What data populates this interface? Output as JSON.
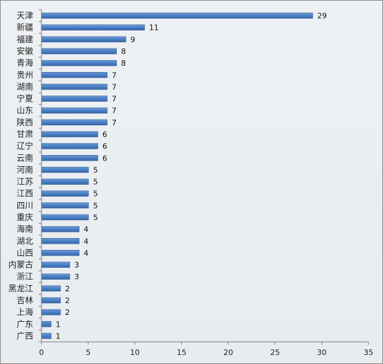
{
  "chart_data": {
    "type": "bar",
    "orientation": "horizontal",
    "title": "",
    "xlabel": "",
    "ylabel": "",
    "categories": [
      "天津",
      "新疆",
      "福建",
      "安徽",
      "青海",
      "贵州",
      "湖南",
      "宁夏",
      "山东",
      "陕西",
      "甘肃",
      "辽宁",
      "云南",
      "河南",
      "江苏",
      "江西",
      "四川",
      "重庆",
      "海南",
      "湖北",
      "山西",
      "内蒙古",
      "浙江",
      "黑龙江",
      "吉林",
      "上海",
      "广东",
      "广西"
    ],
    "values": [
      29,
      11,
      9,
      8,
      8,
      7,
      7,
      7,
      7,
      7,
      6,
      6,
      6,
      5,
      5,
      5,
      5,
      5,
      4,
      4,
      4,
      3,
      3,
      2,
      2,
      2,
      1,
      1
    ],
    "xlim": [
      0,
      35
    ],
    "xticks": [
      0,
      5,
      10,
      15,
      20,
      25,
      30,
      35
    ],
    "grid": false,
    "legend": "none",
    "bar_color": "#4a7ec4",
    "data_labels": true
  }
}
